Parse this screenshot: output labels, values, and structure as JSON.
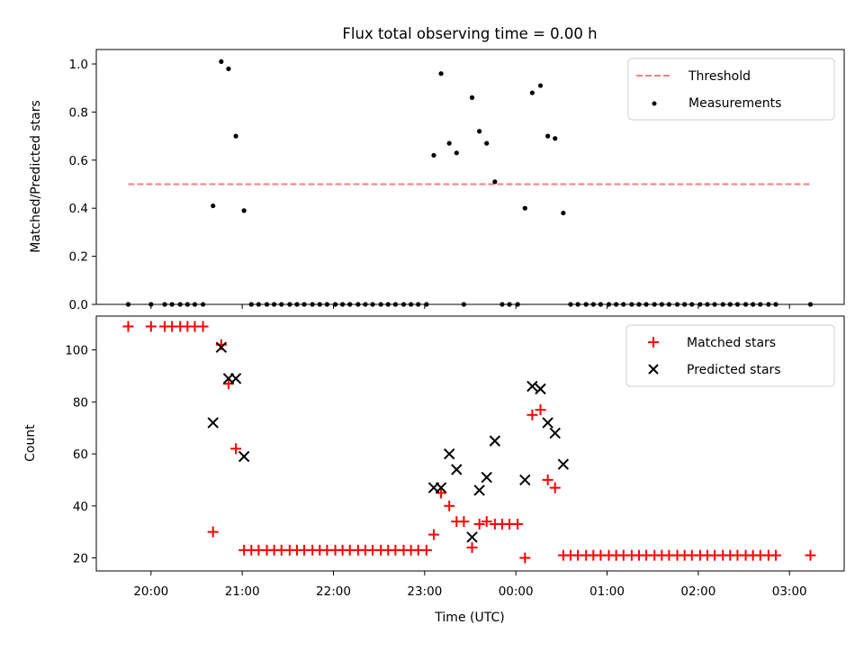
{
  "title": "Flux total observing time = 0.00 h",
  "chart_data": [
    {
      "type": "scatter",
      "panel": "top",
      "title": "Flux total observing time = 0.00 h",
      "xlabel": "",
      "ylabel": "Matched/Predicted stars",
      "x_unit": "hours (UTC, values > 24 are after midnight)",
      "xlim": [
        19.4,
        27.6
      ],
      "ylim": [
        0,
        1.06
      ],
      "yticks": [
        0.0,
        0.2,
        0.4,
        0.6,
        0.8,
        1.0
      ],
      "ytick_labels": [
        "0.0",
        "0.2",
        "0.4",
        "0.6",
        "0.8",
        "1.0"
      ],
      "grid": false,
      "legend": {
        "position": "top-right",
        "entries": [
          "Threshold",
          "Measurements"
        ]
      },
      "series": [
        {
          "name": "Threshold",
          "style": "dashed-line",
          "color": "#f08080",
          "x": [
            19.75,
            27.25
          ],
          "y": [
            0.5,
            0.5
          ]
        },
        {
          "name": "Measurements",
          "style": "dot",
          "color": "#000000",
          "x": [
            19.75,
            20.0,
            20.15,
            20.23,
            20.32,
            20.4,
            20.48,
            20.57,
            20.68,
            20.77,
            20.85,
            20.93,
            21.02,
            21.1,
            21.18,
            21.27,
            21.35,
            21.43,
            21.52,
            21.6,
            21.68,
            21.77,
            21.85,
            21.93,
            22.02,
            22.1,
            22.18,
            22.27,
            22.35,
            22.43,
            22.52,
            22.6,
            22.68,
            22.77,
            22.85,
            22.93,
            23.02,
            23.1,
            23.18,
            23.27,
            23.35,
            23.43,
            23.52,
            23.6,
            23.68,
            23.77,
            23.85,
            23.93,
            24.02,
            24.1,
            24.18,
            24.27,
            24.35,
            24.43,
            24.52,
            24.6,
            24.68,
            24.77,
            24.85,
            24.93,
            25.02,
            25.1,
            25.18,
            25.27,
            25.35,
            25.43,
            25.52,
            25.6,
            25.68,
            25.77,
            25.85,
            25.93,
            26.02,
            26.1,
            26.18,
            26.27,
            26.35,
            26.43,
            26.52,
            26.6,
            26.68,
            26.77,
            26.85,
            27.23
          ],
          "y": [
            0,
            0,
            0,
            0,
            0,
            0,
            0,
            0,
            0.41,
            1.01,
            0.98,
            0.7,
            0.39,
            0,
            0,
            0,
            0,
            0,
            0,
            0,
            0,
            0,
            0,
            0,
            0,
            0,
            0,
            0,
            0,
            0,
            0,
            0,
            0,
            0,
            0,
            0,
            0,
            0.62,
            0.96,
            0.67,
            0.63,
            0,
            0.86,
            0.72,
            0.67,
            0.51,
            0,
            0,
            0,
            0.4,
            0.88,
            0.91,
            0.7,
            0.69,
            0.38,
            0,
            0,
            0,
            0,
            0,
            0,
            0,
            0,
            0,
            0,
            0,
            0,
            0,
            0,
            0,
            0,
            0,
            0,
            0,
            0,
            0,
            0,
            0,
            0,
            0,
            0,
            0,
            0,
            0
          ]
        }
      ]
    },
    {
      "type": "scatter",
      "panel": "bottom",
      "title": "",
      "xlabel": "Time (UTC)",
      "ylabel": "Count",
      "xlim": [
        19.4,
        27.6
      ],
      "ylim": [
        15,
        113
      ],
      "yticks": [
        20,
        40,
        60,
        80,
        100
      ],
      "ytick_labels": [
        "20",
        "40",
        "60",
        "80",
        "100"
      ],
      "xticks": [
        20,
        21,
        22,
        23,
        24,
        25,
        26,
        27
      ],
      "xtick_labels": [
        "20:00",
        "21:00",
        "22:00",
        "23:00",
        "00:00",
        "01:00",
        "02:00",
        "03:00"
      ],
      "grid": false,
      "legend": {
        "position": "top-right",
        "entries": [
          "Matched stars",
          "Predicted stars"
        ]
      },
      "series": [
        {
          "name": "Matched stars",
          "style": "plus",
          "color": "#ff0000",
          "x": [
            19.75,
            20.0,
            20.15,
            20.23,
            20.32,
            20.4,
            20.48,
            20.57,
            20.68,
            20.77,
            20.85,
            20.93,
            21.02,
            21.1,
            21.18,
            21.27,
            21.35,
            21.43,
            21.52,
            21.6,
            21.68,
            21.77,
            21.85,
            21.93,
            22.02,
            22.1,
            22.18,
            22.27,
            22.35,
            22.43,
            22.52,
            22.6,
            22.68,
            22.77,
            22.85,
            22.93,
            23.02,
            23.1,
            23.18,
            23.27,
            23.35,
            23.43,
            23.52,
            23.6,
            23.68,
            23.77,
            23.85,
            23.93,
            24.02,
            24.1,
            24.18,
            24.27,
            24.35,
            24.43,
            24.52,
            24.6,
            24.68,
            24.77,
            24.85,
            24.93,
            25.02,
            25.1,
            25.18,
            25.27,
            25.35,
            25.43,
            25.52,
            25.6,
            25.68,
            25.77,
            25.85,
            25.93,
            26.02,
            26.1,
            26.18,
            26.27,
            26.35,
            26.43,
            26.52,
            26.6,
            26.68,
            26.77,
            26.85,
            27.23
          ],
          "y": [
            109,
            109,
            109,
            109,
            109,
            109,
            109,
            109,
            30,
            102,
            87,
            62,
            23,
            23,
            23,
            23,
            23,
            23,
            23,
            23,
            23,
            23,
            23,
            23,
            23,
            23,
            23,
            23,
            23,
            23,
            23,
            23,
            23,
            23,
            23,
            23,
            23,
            29,
            45,
            40,
            34,
            34,
            24,
            33,
            34,
            33,
            33,
            33,
            33,
            20,
            75,
            77,
            50,
            47,
            21,
            21,
            21,
            21,
            21,
            21,
            21,
            21,
            21,
            21,
            21,
            21,
            21,
            21,
            21,
            21,
            21,
            21,
            21,
            21,
            21,
            21,
            21,
            21,
            21,
            21,
            21,
            21,
            21,
            21
          ]
        },
        {
          "name": "Predicted stars",
          "style": "x",
          "color": "#000000",
          "x": [
            20.68,
            20.77,
            20.85,
            20.93,
            21.02,
            23.1,
            23.18,
            23.27,
            23.35,
            23.52,
            23.6,
            23.68,
            23.77,
            24.1,
            24.18,
            24.27,
            24.35,
            24.43,
            24.52
          ],
          "y": [
            72,
            101,
            89,
            89,
            59,
            47,
            47,
            60,
            54,
            28,
            46,
            51,
            65,
            50,
            86,
            85,
            72,
            68,
            56
          ]
        }
      ]
    }
  ]
}
